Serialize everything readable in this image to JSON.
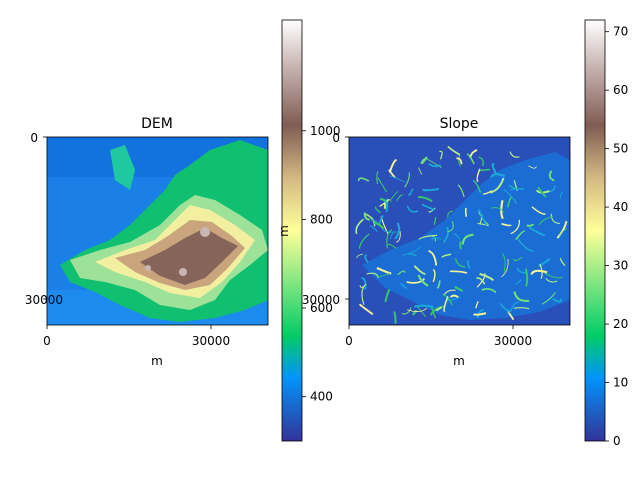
{
  "chart_data": [
    {
      "type": "heatmap",
      "title": "DEM",
      "xlabel": "m",
      "ylabel": "",
      "x_ticks": [
        "0",
        "30000"
      ],
      "y_ticks": [
        "0",
        "30000"
      ],
      "xlim": [
        0,
        40400
      ],
      "ylim": [
        34400,
        0
      ],
      "colormap": "terrain",
      "colorbar": {
        "label": "m",
        "ticks": [
          400,
          600,
          800,
          1000
        ],
        "tick_labels": [
          "400",
          "600",
          "800",
          "1000"
        ],
        "range": [
          300,
          1250
        ]
      },
      "data_description_levels": [
        300,
        420,
        500,
        600,
        700,
        800,
        950,
        1100,
        1250
      ]
    },
    {
      "type": "heatmap",
      "title": "Slope",
      "xlabel": "m",
      "ylabel": "",
      "x_ticks": [
        "0",
        "30000"
      ],
      "y_ticks": [
        "0",
        "30000"
      ],
      "xlim": [
        0,
        40400
      ],
      "ylim": [
        34400,
        0
      ],
      "colormap": "terrain",
      "colorbar": {
        "label": "",
        "ticks": [
          0,
          10,
          20,
          30,
          40,
          50,
          60,
          70
        ],
        "tick_labels": [
          "0",
          "10",
          "20",
          "30",
          "40",
          "50",
          "60",
          "70"
        ],
        "range": [
          0,
          72
        ]
      }
    }
  ],
  "colors": {
    "terrain": [
      "#333399",
      "#0294fa",
      "#01cc66",
      "#80e680",
      "#ffff99",
      "#d4b982",
      "#805c54",
      "#c0aba8",
      "#ffffff"
    ]
  }
}
